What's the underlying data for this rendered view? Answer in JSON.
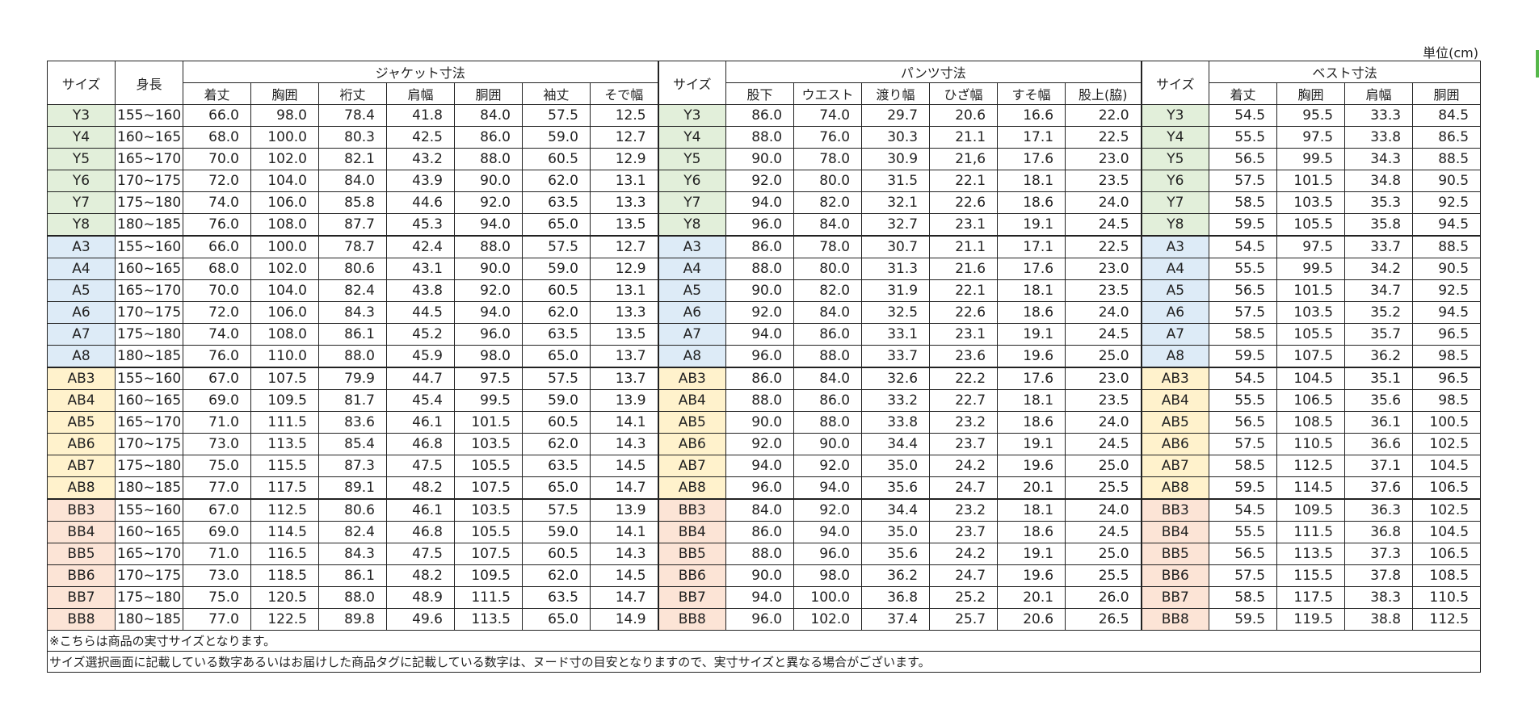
{
  "unit_label": "単位(cm)",
  "headers": {
    "size": "サイズ",
    "height": "身長",
    "jacket": "ジャケット寸法",
    "pants": "パンツ寸法",
    "vest": "ベスト寸法",
    "jacket_cols": [
      "着丈",
      "胸囲",
      "裄丈",
      "肩幅",
      "胴囲",
      "袖丈",
      "そで幅"
    ],
    "pants_cols": [
      "股下",
      "ウエスト",
      "渡り幅",
      "ひざ幅",
      "すそ幅",
      "股上(脇)"
    ],
    "vest_cols": [
      "着丈",
      "胸囲",
      "肩幅",
      "胴囲"
    ]
  },
  "rows": [
    {
      "group": "Y",
      "size": "Y3",
      "height": "155~160",
      "jacket": [
        "66.0",
        "98.0",
        "78.4",
        "41.8",
        "84.0",
        "57.5",
        "12.5"
      ],
      "pants": [
        "86.0",
        "74.0",
        "29.7",
        "20.6",
        "16.6",
        "22.0"
      ],
      "vest": [
        "54.5",
        "95.5",
        "33.3",
        "84.5"
      ]
    },
    {
      "group": "Y",
      "size": "Y4",
      "height": "160~165",
      "jacket": [
        "68.0",
        "100.0",
        "80.3",
        "42.5",
        "86.0",
        "59.0",
        "12.7"
      ],
      "pants": [
        "88.0",
        "76.0",
        "30.3",
        "21.1",
        "17.1",
        "22.5"
      ],
      "vest": [
        "55.5",
        "97.5",
        "33.8",
        "86.5"
      ]
    },
    {
      "group": "Y",
      "size": "Y5",
      "height": "165~170",
      "jacket": [
        "70.0",
        "102.0",
        "82.1",
        "43.2",
        "88.0",
        "60.5",
        "12.9"
      ],
      "pants": [
        "90.0",
        "78.0",
        "30.9",
        "21,6",
        "17.6",
        "23.0"
      ],
      "vest": [
        "56.5",
        "99.5",
        "34.3",
        "88.5"
      ]
    },
    {
      "group": "Y",
      "size": "Y6",
      "height": "170~175",
      "jacket": [
        "72.0",
        "104.0",
        "84.0",
        "43.9",
        "90.0",
        "62.0",
        "13.1"
      ],
      "pants": [
        "92.0",
        "80.0",
        "31.5",
        "22.1",
        "18.1",
        "23.5"
      ],
      "vest": [
        "57.5",
        "101.5",
        "34.8",
        "90.5"
      ]
    },
    {
      "group": "Y",
      "size": "Y7",
      "height": "175~180",
      "jacket": [
        "74.0",
        "106.0",
        "85.8",
        "44.6",
        "92.0",
        "63.5",
        "13.3"
      ],
      "pants": [
        "94.0",
        "82.0",
        "32.1",
        "22.6",
        "18.6",
        "24.0"
      ],
      "vest": [
        "58.5",
        "103.5",
        "35.3",
        "92.5"
      ]
    },
    {
      "group": "Y",
      "size": "Y8",
      "height": "180~185",
      "jacket": [
        "76.0",
        "108.0",
        "87.7",
        "45.3",
        "94.0",
        "65.0",
        "13.5"
      ],
      "pants": [
        "96.0",
        "84.0",
        "32.7",
        "23.1",
        "19.1",
        "24.5"
      ],
      "vest": [
        "59.5",
        "105.5",
        "35.8",
        "94.5"
      ]
    },
    {
      "group": "A",
      "size": "A3",
      "height": "155~160",
      "jacket": [
        "66.0",
        "100.0",
        "78.7",
        "42.4",
        "88.0",
        "57.5",
        "12.7"
      ],
      "pants": [
        "86.0",
        "78.0",
        "30.7",
        "21.1",
        "17.1",
        "22.5"
      ],
      "vest": [
        "54.5",
        "97.5",
        "33.7",
        "88.5"
      ]
    },
    {
      "group": "A",
      "size": "A4",
      "height": "160~165",
      "jacket": [
        "68.0",
        "102.0",
        "80.6",
        "43.1",
        "90.0",
        "59.0",
        "12.9"
      ],
      "pants": [
        "88.0",
        "80.0",
        "31.3",
        "21.6",
        "17.6",
        "23.0"
      ],
      "vest": [
        "55.5",
        "99.5",
        "34.2",
        "90.5"
      ]
    },
    {
      "group": "A",
      "size": "A5",
      "height": "165~170",
      "jacket": [
        "70.0",
        "104.0",
        "82.4",
        "43.8",
        "92.0",
        "60.5",
        "13.1"
      ],
      "pants": [
        "90.0",
        "82.0",
        "31.9",
        "22.1",
        "18.1",
        "23.5"
      ],
      "vest": [
        "56.5",
        "101.5",
        "34.7",
        "92.5"
      ]
    },
    {
      "group": "A",
      "size": "A6",
      "height": "170~175",
      "jacket": [
        "72.0",
        "106.0",
        "84.3",
        "44.5",
        "94.0",
        "62.0",
        "13.3"
      ],
      "pants": [
        "92.0",
        "84.0",
        "32.5",
        "22.6",
        "18.6",
        "24.0"
      ],
      "vest": [
        "57.5",
        "103.5",
        "35.2",
        "94.5"
      ]
    },
    {
      "group": "A",
      "size": "A7",
      "height": "175~180",
      "jacket": [
        "74.0",
        "108.0",
        "86.1",
        "45.2",
        "96.0",
        "63.5",
        "13.5"
      ],
      "pants": [
        "94.0",
        "86.0",
        "33.1",
        "23.1",
        "19.1",
        "24.5"
      ],
      "vest": [
        "58.5",
        "105.5",
        "35.7",
        "96.5"
      ]
    },
    {
      "group": "A",
      "size": "A8",
      "height": "180~185",
      "jacket": [
        "76.0",
        "110.0",
        "88.0",
        "45.9",
        "98.0",
        "65.0",
        "13.7"
      ],
      "pants": [
        "96.0",
        "88.0",
        "33.7",
        "23.6",
        "19.6",
        "25.0"
      ],
      "vest": [
        "59.5",
        "107.5",
        "36.2",
        "98.5"
      ]
    },
    {
      "group": "AB",
      "size": "AB3",
      "height": "155~160",
      "jacket": [
        "67.0",
        "107.5",
        "79.9",
        "44.7",
        "97.5",
        "57.5",
        "13.7"
      ],
      "pants": [
        "86.0",
        "84.0",
        "32.6",
        "22.2",
        "17.6",
        "23.0"
      ],
      "vest": [
        "54.5",
        "104.5",
        "35.1",
        "96.5"
      ]
    },
    {
      "group": "AB",
      "size": "AB4",
      "height": "160~165",
      "jacket": [
        "69.0",
        "109.5",
        "81.7",
        "45.4",
        "99.5",
        "59.0",
        "13.9"
      ],
      "pants": [
        "88.0",
        "86.0",
        "33.2",
        "22.7",
        "18.1",
        "23.5"
      ],
      "vest": [
        "55.5",
        "106.5",
        "35.6",
        "98.5"
      ]
    },
    {
      "group": "AB",
      "size": "AB5",
      "height": "165~170",
      "jacket": [
        "71.0",
        "111.5",
        "83.6",
        "46.1",
        "101.5",
        "60.5",
        "14.1"
      ],
      "pants": [
        "90.0",
        "88.0",
        "33.8",
        "23.2",
        "18.6",
        "24.0"
      ],
      "vest": [
        "56.5",
        "108.5",
        "36.1",
        "100.5"
      ]
    },
    {
      "group": "AB",
      "size": "AB6",
      "height": "170~175",
      "jacket": [
        "73.0",
        "113.5",
        "85.4",
        "46.8",
        "103.5",
        "62.0",
        "14.3"
      ],
      "pants": [
        "92.0",
        "90.0",
        "34.4",
        "23.7",
        "19.1",
        "24.5"
      ],
      "vest": [
        "57.5",
        "110.5",
        "36.6",
        "102.5"
      ]
    },
    {
      "group": "AB",
      "size": "AB7",
      "height": "175~180",
      "jacket": [
        "75.0",
        "115.5",
        "87.3",
        "47.5",
        "105.5",
        "63.5",
        "14.5"
      ],
      "pants": [
        "94.0",
        "92.0",
        "35.0",
        "24.2",
        "19.6",
        "25.0"
      ],
      "vest": [
        "58.5",
        "112.5",
        "37.1",
        "104.5"
      ]
    },
    {
      "group": "AB",
      "size": "AB8",
      "height": "180~185",
      "jacket": [
        "77.0",
        "117.5",
        "89.1",
        "48.2",
        "107.5",
        "65.0",
        "14.7"
      ],
      "pants": [
        "96.0",
        "94.0",
        "35.6",
        "24.7",
        "20.1",
        "25.5"
      ],
      "vest": [
        "59.5",
        "114.5",
        "37.6",
        "106.5"
      ]
    },
    {
      "group": "BB",
      "size": "BB3",
      "height": "155~160",
      "jacket": [
        "67.0",
        "112.5",
        "80.6",
        "46.1",
        "103.5",
        "57.5",
        "13.9"
      ],
      "pants": [
        "84.0",
        "92.0",
        "34.4",
        "23.2",
        "18.1",
        "24.0"
      ],
      "vest": [
        "54.5",
        "109.5",
        "36.3",
        "102.5"
      ]
    },
    {
      "group": "BB",
      "size": "BB4",
      "height": "160~165",
      "jacket": [
        "69.0",
        "114.5",
        "82.4",
        "46.8",
        "105.5",
        "59.0",
        "14.1"
      ],
      "pants": [
        "86.0",
        "94.0",
        "35.0",
        "23.7",
        "18.6",
        "24.5"
      ],
      "vest": [
        "55.5",
        "111.5",
        "36.8",
        "104.5"
      ]
    },
    {
      "group": "BB",
      "size": "BB5",
      "height": "165~170",
      "jacket": [
        "71.0",
        "116.5",
        "84.3",
        "47.5",
        "107.5",
        "60.5",
        "14.3"
      ],
      "pants": [
        "88.0",
        "96.0",
        "35.6",
        "24.2",
        "19.1",
        "25.0"
      ],
      "vest": [
        "56.5",
        "113.5",
        "37.3",
        "106.5"
      ]
    },
    {
      "group": "BB",
      "size": "BB6",
      "height": "170~175",
      "jacket": [
        "73.0",
        "118.5",
        "86.1",
        "48.2",
        "109.5",
        "62.0",
        "14.5"
      ],
      "pants": [
        "90.0",
        "98.0",
        "36.2",
        "24.7",
        "19.6",
        "25.5"
      ],
      "vest": [
        "57.5",
        "115.5",
        "37.8",
        "108.5"
      ]
    },
    {
      "group": "BB",
      "size": "BB7",
      "height": "175~180",
      "jacket": [
        "75.0",
        "120.5",
        "88.0",
        "48.9",
        "111.5",
        "63.5",
        "14.7"
      ],
      "pants": [
        "94.0",
        "100.0",
        "36.8",
        "25.2",
        "20.1",
        "26.0"
      ],
      "vest": [
        "58.5",
        "117.5",
        "38.3",
        "110.5"
      ]
    },
    {
      "group": "BB",
      "size": "BB8",
      "height": "180~185",
      "jacket": [
        "77.0",
        "122.5",
        "89.8",
        "49.6",
        "113.5",
        "65.0",
        "14.9"
      ],
      "pants": [
        "96.0",
        "102.0",
        "37.4",
        "25.7",
        "20.6",
        "26.5"
      ],
      "vest": [
        "59.5",
        "119.5",
        "38.8",
        "112.5"
      ]
    }
  ],
  "notes": [
    "※こちらは商品の実寸サイズとなります。",
    "サイズ選択画面に記載している数字あるいはお届けした商品タグに記載している数字は、ヌード寸の目安となりますので、実寸サイズと異なる場合がございます。"
  ],
  "colors": {
    "Y": "#e2efda",
    "A": "#ddebf7",
    "AB": "#fff2cc",
    "BB": "#fce4d6"
  }
}
